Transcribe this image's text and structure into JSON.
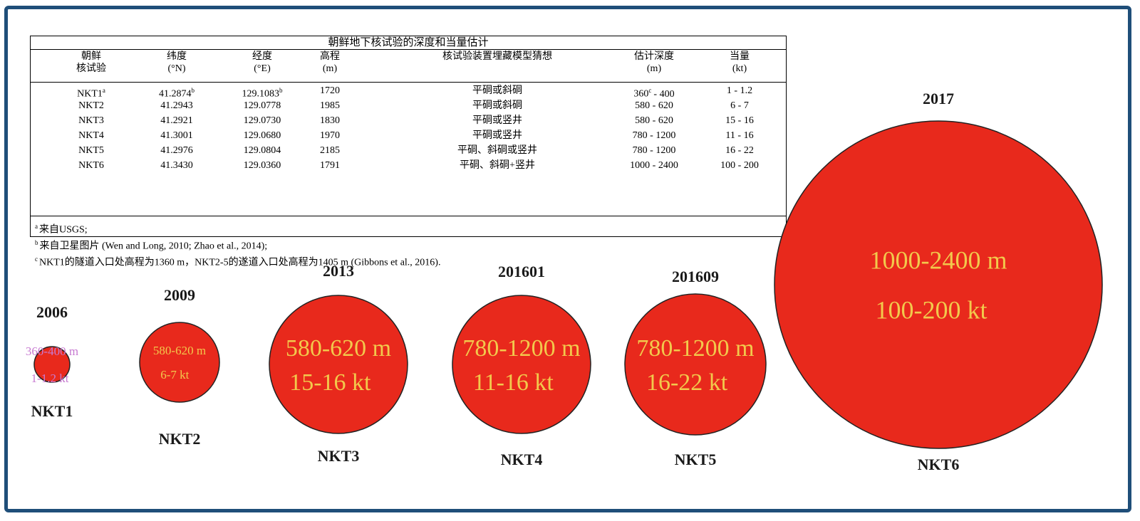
{
  "table": {
    "title": "朝鲜地下核试验的深度和当量估计",
    "headers": [
      [
        "朝鲜",
        "核试验"
      ],
      [
        "纬度",
        "(°N)"
      ],
      [
        "经度",
        "(°E)"
      ],
      [
        "高程",
        "(m)"
      ],
      [
        "核试验装置埋藏模型猜想",
        ""
      ],
      [
        "估计深度",
        "(m)"
      ],
      [
        "当量",
        "(kt)"
      ]
    ],
    "rows": [
      {
        "test": "NKT1",
        "test_sup": "a",
        "lat": "41.2874",
        "lat_sup": "b",
        "lon": "129.1083",
        "lon_sup": "b",
        "elev": "1720",
        "model": "平硐或斜硐",
        "depth": "360",
        "depth_sup": "c",
        "depth_rest": "- 400",
        "yield": "1 - 1.2"
      },
      {
        "test": "NKT2",
        "test_sup": "",
        "lat": "41.2943",
        "lat_sup": "",
        "lon": "129.0778",
        "lon_sup": "",
        "elev": "1985",
        "model": "平硐或斜硐",
        "depth": "580 - 620",
        "depth_sup": "",
        "depth_rest": "",
        "yield": "6 - 7"
      },
      {
        "test": "NKT3",
        "test_sup": "",
        "lat": "41.2921",
        "lat_sup": "",
        "lon": "129.0730",
        "lon_sup": "",
        "elev": "1830",
        "model": "平硐或竖井",
        "depth": "580 - 620",
        "depth_sup": "",
        "depth_rest": "",
        "yield": "15 - 16"
      },
      {
        "test": "NKT4",
        "test_sup": "",
        "lat": "41.3001",
        "lat_sup": "",
        "lon": "129.0680",
        "lon_sup": "",
        "elev": "1970",
        "model": "平硐或竖井",
        "depth": "780 - 1200",
        "depth_sup": "",
        "depth_rest": "",
        "yield": "11 - 16"
      },
      {
        "test": "NKT5",
        "test_sup": "",
        "lat": "41.2976",
        "lat_sup": "",
        "lon": "129.0804",
        "lon_sup": "",
        "elev": "2185",
        "model": "平硐、斜硐或竖井",
        "depth": "780 - 1200",
        "depth_sup": "",
        "depth_rest": "",
        "yield": "16 - 22"
      },
      {
        "test": "NKT6",
        "test_sup": "",
        "lat": "41.3430",
        "lat_sup": "",
        "lon": "129.0360",
        "lon_sup": "",
        "elev": "1791",
        "model": "平硐、斜硐+竖井",
        "depth": "1000 - 2400",
        "depth_sup": "",
        "depth_rest": "",
        "yield": "100 - 200"
      }
    ],
    "notes": [
      {
        "sup": "a",
        "text": "来自USGS;"
      },
      {
        "sup": "b",
        "text": "来自卫星图片 (Wen and Long, 2010; Zhao et al., 2014);"
      },
      {
        "sup": "c",
        "text": "NKT1的隧道入口处高程为1360 m，NKT2-5的遂道入口处高程为1405 m (Gibbons et al., 2016)."
      }
    ]
  },
  "tests": [
    {
      "year": "2006",
      "name": "NKT1",
      "depth_label": "360-400 m",
      "yield_label": "1-1.2 kt",
      "yield_kt": [
        1,
        1.2
      ]
    },
    {
      "year": "2009",
      "name": "NKT2",
      "depth_label": "580-620 m",
      "yield_label": "6-7 kt",
      "yield_kt": [
        6,
        7
      ]
    },
    {
      "year": "2013",
      "name": "NKT3",
      "depth_label": "580-620 m",
      "yield_label": "15-16 kt",
      "yield_kt": [
        15,
        16
      ]
    },
    {
      "year": "201601",
      "name": "NKT4",
      "depth_label": "780-1200 m",
      "yield_label": "11-16 kt",
      "yield_kt": [
        11,
        16
      ]
    },
    {
      "year": "201609",
      "name": "NKT5",
      "depth_label": "780-1200 m",
      "yield_label": "16-22 kt",
      "yield_kt": [
        16,
        22
      ]
    },
    {
      "year": "2017",
      "name": "NKT6",
      "depth_label": "1000-2400 m",
      "yield_label": "100-200 kt",
      "yield_kt": [
        100,
        200
      ]
    }
  ],
  "colors": {
    "frame": "#1f4e79",
    "circle_fill": "#e8291c",
    "circle_text": "#f2c94c",
    "small_circle_text": "#c77ad1"
  }
}
